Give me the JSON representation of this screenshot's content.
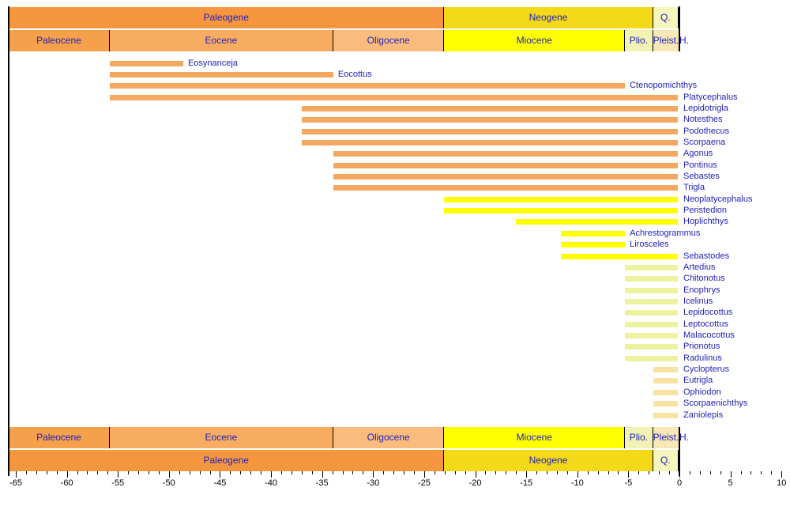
{
  "colors": {
    "background": "#FFFFFF",
    "label_text": "#2121BB",
    "axis_text": "#000000",
    "frame_line": "#000000",
    "bar_groups": {
      "paleogene": "#F3A75F",
      "miocene": "#FFFF00",
      "pliocene": "#ECF29E",
      "pleistocene": "#F8E2A2"
    }
  },
  "time_scale": {
    "periods": [
      {
        "label": "Paleogene",
        "start": -65,
        "end": -23.03,
        "color": "#F6973F"
      },
      {
        "label": "Neogene",
        "start": -23.03,
        "end": -2.58,
        "color": "#F3D918"
      },
      {
        "label": "Q.",
        "start": -2.58,
        "end": 0,
        "color": "#F6F6BC"
      }
    ],
    "epochs": [
      {
        "label": "Paleocene",
        "start": -65,
        "end": -55.8,
        "color": "#F5A04A"
      },
      {
        "label": "Eocene",
        "start": -55.8,
        "end": -33.9,
        "color": "#F8AC62"
      },
      {
        "label": "Oligocene",
        "start": -33.9,
        "end": -23.03,
        "color": "#F9BC7C"
      },
      {
        "label": "Miocene",
        "start": -23.03,
        "end": -5.33,
        "color": "#FFFF00"
      },
      {
        "label": "Plio.",
        "start": -5.33,
        "end": -2.58,
        "color": "#F1F2B3"
      },
      {
        "label": "Pleist.",
        "start": -2.58,
        "end": -0.01,
        "color": "#F7E8B6"
      },
      {
        "label": "H.",
        "start": -0.01,
        "end": 0,
        "color": "#FFFFFF"
      }
    ]
  },
  "axis": {
    "min": -65,
    "max": 10,
    "major_tick_step": 5,
    "minor_tick_step": 1,
    "tick_labels": [
      "-65",
      "-60",
      "-55",
      "-50",
      "-45",
      "-40",
      "-35",
      "-30",
      "-25",
      "-20",
      "-15",
      "-10",
      "-5",
      "0",
      "5",
      "10"
    ],
    "present_line_at": 0
  },
  "chart_data": {
    "type": "bar",
    "subtype": "horizontal-range-stratigraphic",
    "xlim": [
      -65,
      10
    ],
    "grid": false,
    "legend": false,
    "taxa": [
      {
        "name": "Eosynanceja",
        "start": -55.8,
        "end": -48.6,
        "group": "paleogene"
      },
      {
        "name": "Eocottus",
        "start": -55.8,
        "end": -33.9,
        "group": "paleogene"
      },
      {
        "name": "Ctenopomichthys",
        "start": -55.8,
        "end": -5.33,
        "group": "paleogene"
      },
      {
        "name": "Platycephalus",
        "start": -55.8,
        "end": 0,
        "group": "paleogene"
      },
      {
        "name": "Lepidotrigla",
        "start": -37.0,
        "end": 0,
        "group": "paleogene"
      },
      {
        "name": "Notesthes",
        "start": -37.0,
        "end": 0,
        "group": "paleogene"
      },
      {
        "name": "Podothecus",
        "start": -37.0,
        "end": 0,
        "group": "paleogene"
      },
      {
        "name": "Scorpaena",
        "start": -37.0,
        "end": 0,
        "group": "paleogene"
      },
      {
        "name": "Agonus",
        "start": -33.9,
        "end": 0,
        "group": "paleogene"
      },
      {
        "name": "Pontinus",
        "start": -33.9,
        "end": 0,
        "group": "paleogene"
      },
      {
        "name": "Sebastes",
        "start": -33.9,
        "end": 0,
        "group": "paleogene"
      },
      {
        "name": "Trigla",
        "start": -33.9,
        "end": 0,
        "group": "paleogene"
      },
      {
        "name": "Neoplatycephalus",
        "start": -23.03,
        "end": 0,
        "group": "miocene"
      },
      {
        "name": "Peristedion",
        "start": -23.03,
        "end": 0,
        "group": "miocene"
      },
      {
        "name": "Hoplichthys",
        "start": -16.0,
        "end": 0,
        "group": "miocene"
      },
      {
        "name": "Achrestogrammus",
        "start": -11.6,
        "end": -5.33,
        "group": "miocene"
      },
      {
        "name": "Lirosceles",
        "start": -11.6,
        "end": -5.33,
        "group": "miocene"
      },
      {
        "name": "Sebastodes",
        "start": -11.6,
        "end": 0,
        "group": "miocene"
      },
      {
        "name": "Artedius",
        "start": -5.33,
        "end": 0,
        "group": "pliocene"
      },
      {
        "name": "Chitonotus",
        "start": -5.33,
        "end": 0,
        "group": "pliocene"
      },
      {
        "name": "Enophrys",
        "start": -5.33,
        "end": 0,
        "group": "pliocene"
      },
      {
        "name": "Icelinus",
        "start": -5.33,
        "end": 0,
        "group": "pliocene"
      },
      {
        "name": "Lepidocottus",
        "start": -5.33,
        "end": 0,
        "group": "pliocene"
      },
      {
        "name": "Leptocottus",
        "start": -5.33,
        "end": 0,
        "group": "pliocene"
      },
      {
        "name": "Malacocottus",
        "start": -5.33,
        "end": 0,
        "group": "pliocene"
      },
      {
        "name": "Prionotus",
        "start": -5.33,
        "end": 0,
        "group": "pliocene"
      },
      {
        "name": "Radulinus",
        "start": -5.33,
        "end": 0,
        "group": "pliocene"
      },
      {
        "name": "Cyclopterus",
        "start": -2.58,
        "end": 0,
        "group": "pleistocene"
      },
      {
        "name": "Eutrigla",
        "start": -2.58,
        "end": 0,
        "group": "pleistocene"
      },
      {
        "name": "Ophiodon",
        "start": -2.58,
        "end": 0,
        "group": "pleistocene"
      },
      {
        "name": "Scorpaenichthys",
        "start": -2.58,
        "end": 0,
        "group": "pleistocene"
      },
      {
        "name": "Zaniolepis",
        "start": -2.58,
        "end": 0,
        "group": "pleistocene"
      }
    ]
  }
}
